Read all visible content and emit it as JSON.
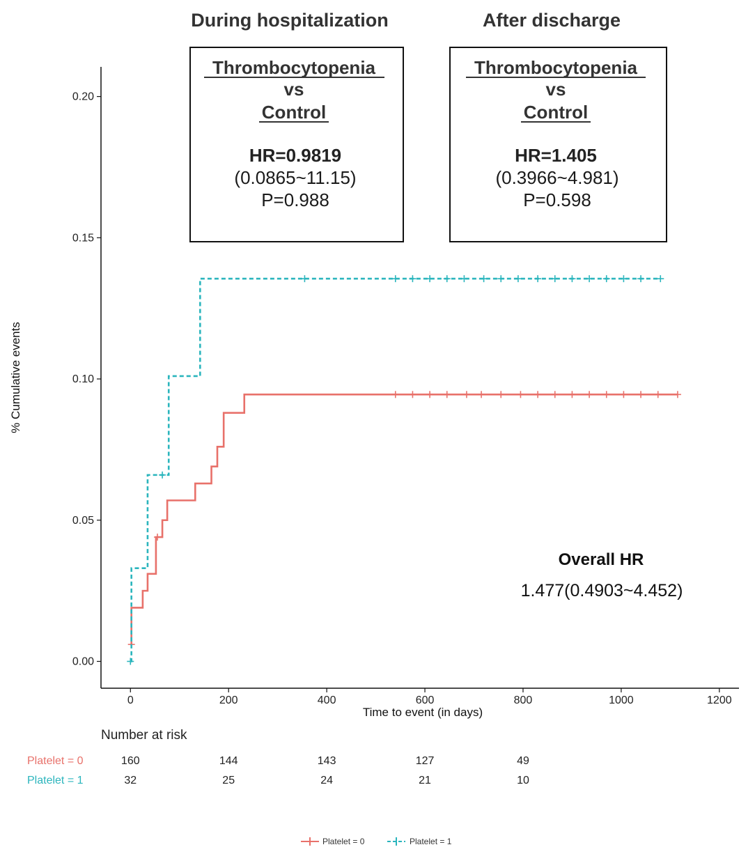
{
  "chart_data": {
    "type": "line",
    "subtype": "kaplan-meier-cumulative-events",
    "ylabel": "% Cumulative events",
    "xlabel": "Time to event (in days)",
    "xlim": [
      -60,
      1240
    ],
    "ylim": [
      -0.0095,
      0.2105
    ],
    "x_ticks": [
      0,
      200,
      400,
      600,
      800,
      1000,
      1200
    ],
    "y_ticks": [
      "0.00",
      "0.05",
      "0.10",
      "0.15",
      "0.20"
    ],
    "grid": false,
    "legend_position": "bottom",
    "section_headers": {
      "left": "During hospitalization",
      "right": "After discharge"
    },
    "panels": [
      {
        "title_line1": "Thrombocytopenia",
        "title_line2": "vs",
        "title_line3": "Control",
        "hr": "HR=0.9819",
        "ci": "(0.0865~11.15)",
        "p": "P=0.988"
      },
      {
        "title_line1": "Thrombocytopenia",
        "title_line2": "vs",
        "title_line3": "Control",
        "hr": "HR=1.405",
        "ci": "(0.3966~4.981)",
        "p": "P=0.598"
      }
    ],
    "overall": {
      "label": "Overall HR",
      "value": "1.477(0.4903~4.452)"
    },
    "series": [
      {
        "name": "Platelet = 0",
        "color": "#e8716a",
        "dash": "solid",
        "steps": [
          [
            0,
            0.006
          ],
          [
            2,
            0.019
          ],
          [
            25,
            0.025
          ],
          [
            35,
            0.031
          ],
          [
            52,
            0.044
          ],
          [
            65,
            0.05
          ],
          [
            75,
            0.057
          ],
          [
            132,
            0.063
          ],
          [
            165,
            0.069
          ],
          [
            177,
            0.076
          ],
          [
            190,
            0.088
          ],
          [
            232,
            0.0945
          ]
        ],
        "end_x": 1115,
        "censor_x": [
          2,
          55,
          540,
          575,
          610,
          645,
          685,
          715,
          755,
          795,
          830,
          865,
          900,
          935,
          970,
          1005,
          1040,
          1075,
          1115
        ],
        "censor_y_start": 0.006
      },
      {
        "name": "Platelet = 1",
        "color": "#2bb5bd",
        "dash": "dashed",
        "steps": [
          [
            0,
            0.0
          ],
          [
            2,
            0.033
          ],
          [
            35,
            0.066
          ],
          [
            78,
            0.101
          ],
          [
            142,
            0.1355
          ]
        ],
        "end_x": 1080,
        "censor_x": [
          0,
          65,
          355,
          540,
          575,
          610,
          645,
          680,
          720,
          755,
          790,
          830,
          865,
          900,
          935,
          970,
          1005,
          1040,
          1080
        ],
        "censor_y_start": 0.0
      }
    ],
    "risk_table": {
      "title": "Number at risk",
      "times": [
        0,
        200,
        400,
        600,
        800
      ],
      "rows": [
        {
          "label": "Platelet = 0",
          "color": "#e8716a",
          "values": [
            "160",
            "144",
            "143",
            "127",
            "49"
          ]
        },
        {
          "label": "Platelet = 1",
          "color": "#2bb5bd",
          "values": [
            "32",
            "25",
            "24",
            "21",
            "10"
          ]
        }
      ]
    }
  }
}
